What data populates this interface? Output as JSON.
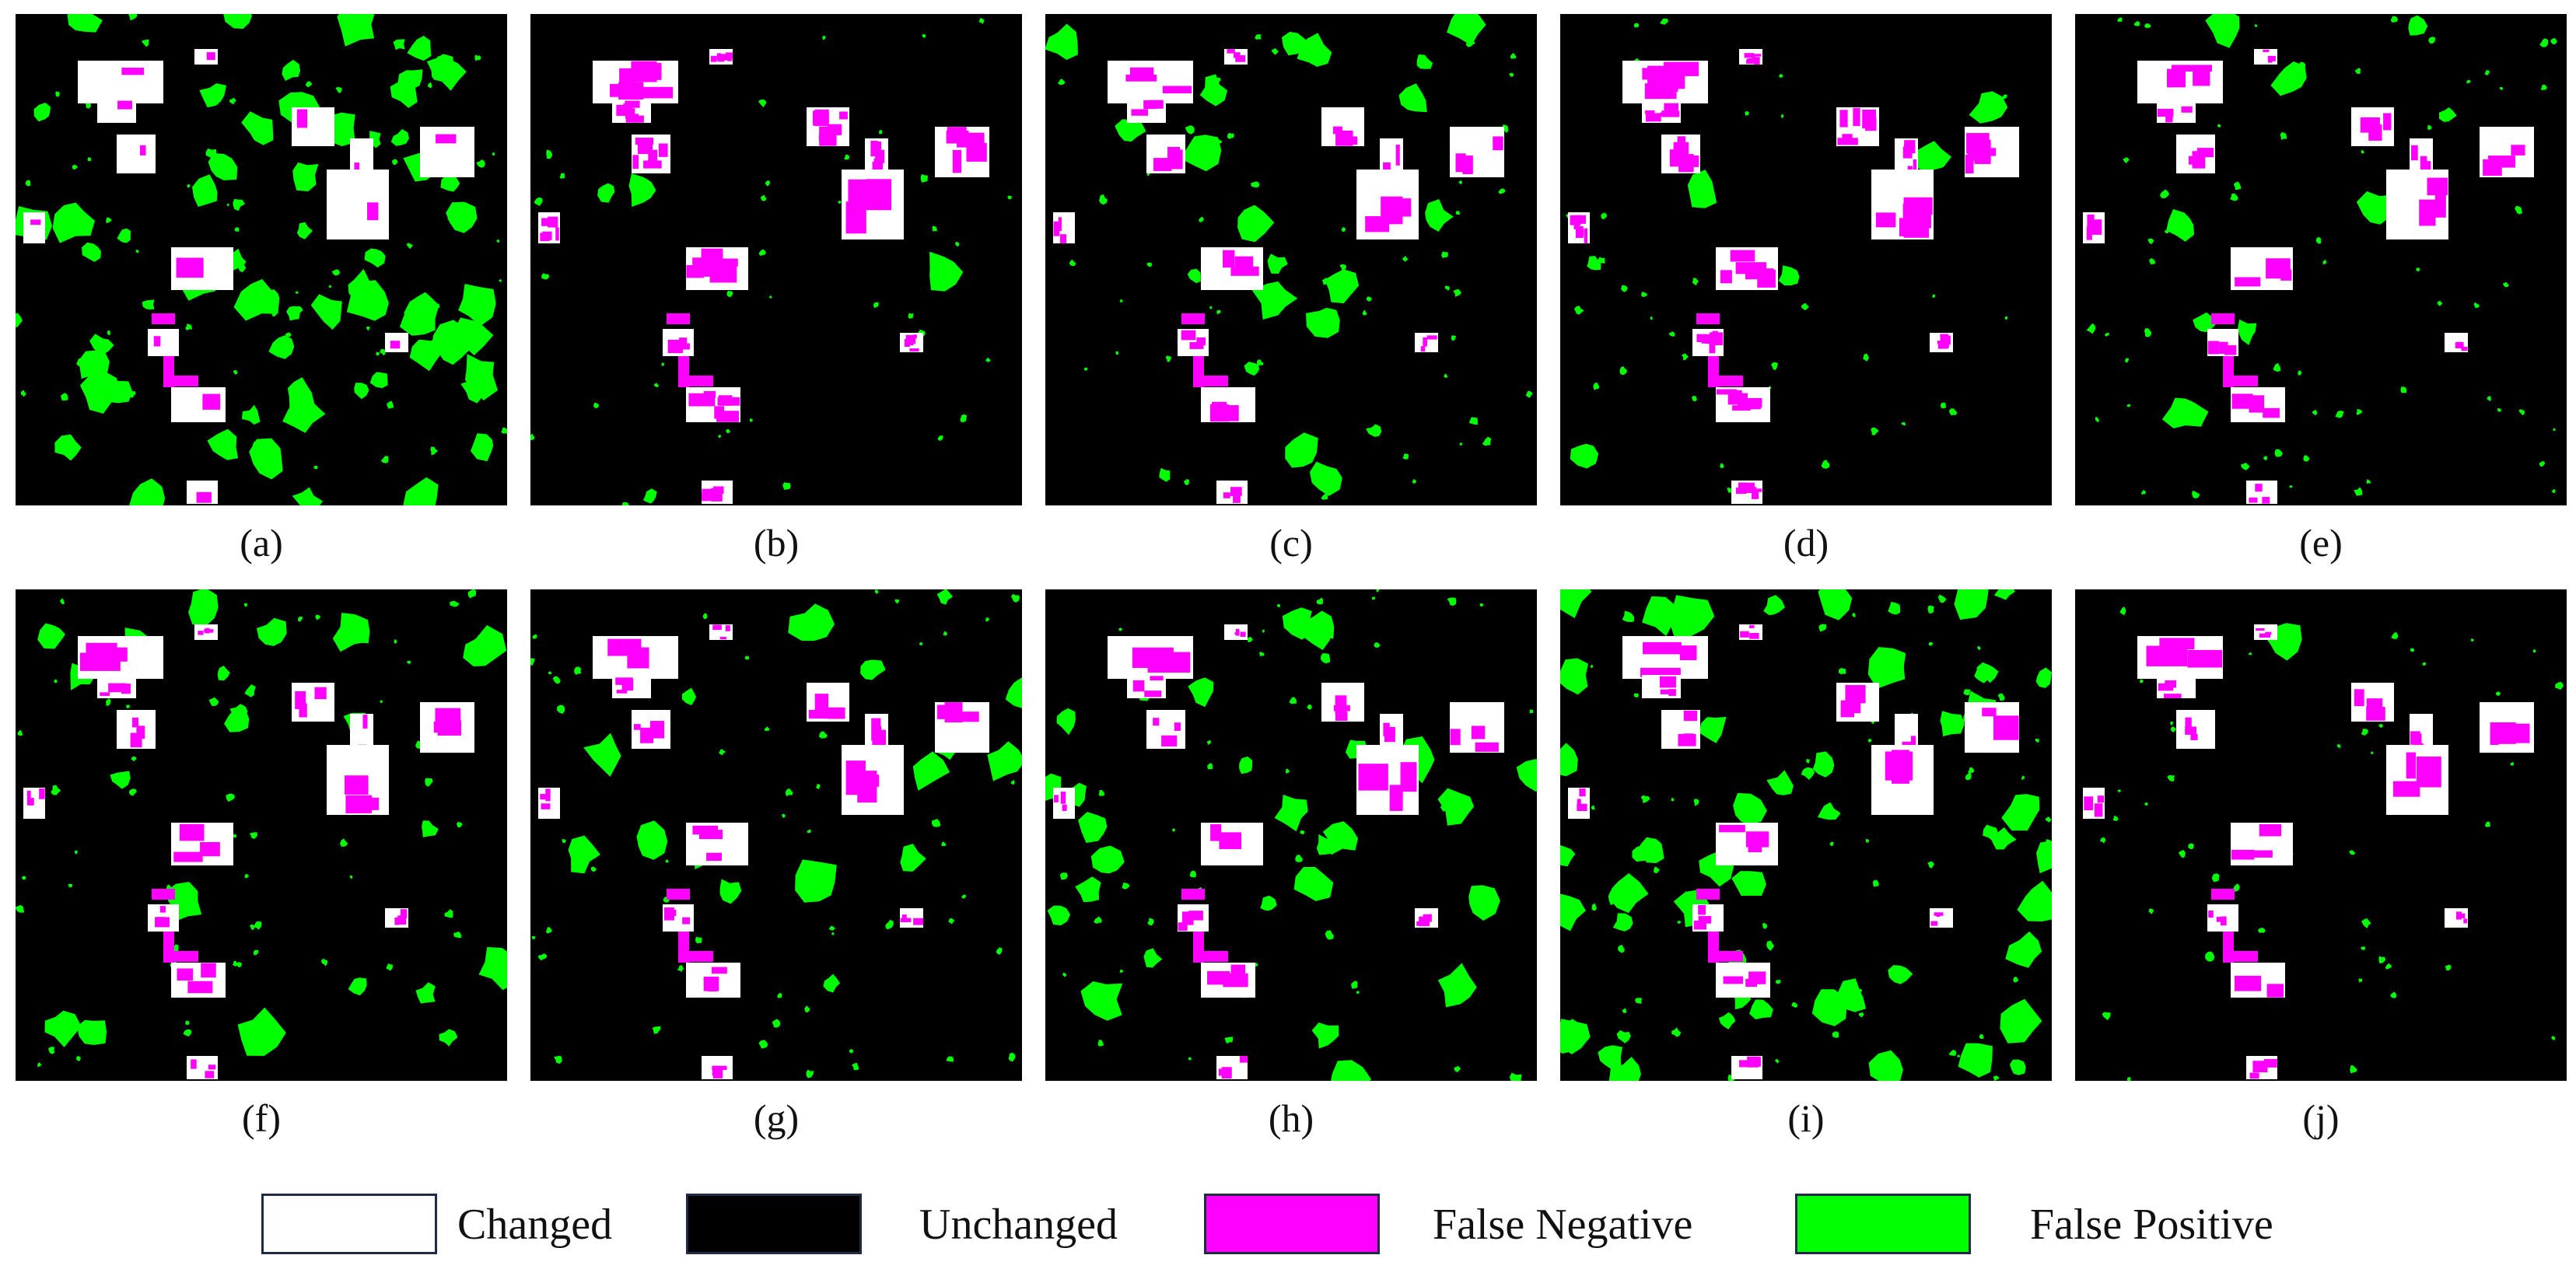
{
  "colors": {
    "changed": "#ffffff",
    "unchanged": "#000000",
    "false_negative": "#ff00ff",
    "false_positive": "#00ff00"
  },
  "panels": [
    {
      "label": "(a)",
      "fp": "high",
      "fn": "low"
    },
    {
      "label": "(b)",
      "fp": "low",
      "fn": "high"
    },
    {
      "label": "(c)",
      "fp": "medium",
      "fn": "medium"
    },
    {
      "label": "(d)",
      "fp": "low",
      "fn": "high"
    },
    {
      "label": "(e)",
      "fp": "medium",
      "fn": "medium"
    },
    {
      "label": "(f)",
      "fp": "medium",
      "fn": "medium"
    },
    {
      "label": "(g)",
      "fp": "medium",
      "fn": "medium"
    },
    {
      "label": "(h)",
      "fp": "medium",
      "fn": "medium"
    },
    {
      "label": "(i)",
      "fp": "high",
      "fn": "medium"
    },
    {
      "label": "(j)",
      "fp": "low",
      "fn": "medium"
    }
  ],
  "legend": [
    {
      "label": "Changed",
      "color": "#ffffff"
    },
    {
      "label": "Unchanged",
      "color": "#000000"
    },
    {
      "label": "False Negative",
      "color": "#ff00ff"
    },
    {
      "label": "False Positive",
      "color": "#00ff00"
    }
  ]
}
